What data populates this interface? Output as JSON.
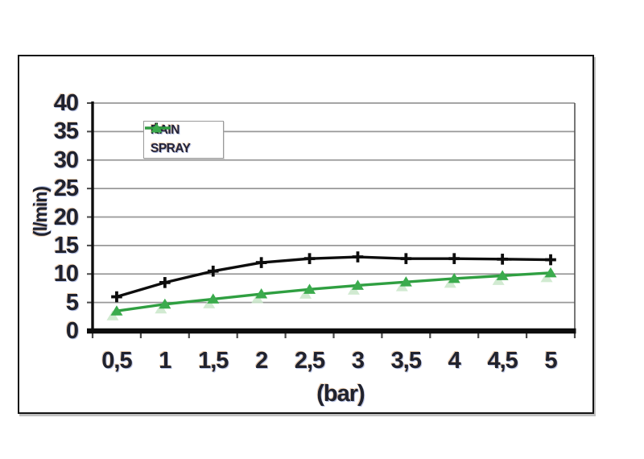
{
  "window": {
    "background": "#ffffff"
  },
  "chart_data": {
    "type": "line",
    "title": "",
    "xlabel": "(bar)",
    "ylabel": "(l/min)",
    "x": [
      0.5,
      1,
      1.5,
      2,
      2.5,
      3,
      3.5,
      4,
      4.5,
      5
    ],
    "x_tick_labels": [
      "0,5",
      "1",
      "1,5",
      "2",
      "2,5",
      "3",
      "3,5",
      "4",
      "4,5",
      "5"
    ],
    "y_ticks": [
      0,
      5,
      10,
      15,
      20,
      25,
      30,
      35,
      40
    ],
    "ylim": [
      0,
      40
    ],
    "grid": true,
    "legend_position": "top-left-inside",
    "series": [
      {
        "name": "RAIN",
        "color": "#0d0d0d",
        "marker": "plus",
        "values": [
          6,
          8.5,
          10.5,
          12,
          12.7,
          13,
          12.7,
          12.7,
          12.6,
          12.5
        ]
      },
      {
        "name": "SPRAY",
        "color": "#2f9f41",
        "marker": "triangle-up",
        "marker_color": "#3bab4d",
        "marker_ghost_color": "#c9e6c9",
        "values": [
          3.5,
          4.7,
          5.6,
          6.5,
          7.3,
          8,
          8.6,
          9.2,
          9.7,
          10.2
        ]
      }
    ],
    "colors": {
      "gridline": "#989898",
      "axis": "#0d0d0d",
      "tick_mark": "#4a4a4a",
      "tick_text": "#20222e",
      "plot_right_border": "#555555",
      "frame_border": "#141414",
      "legend_border": "#9a9a9a"
    }
  }
}
